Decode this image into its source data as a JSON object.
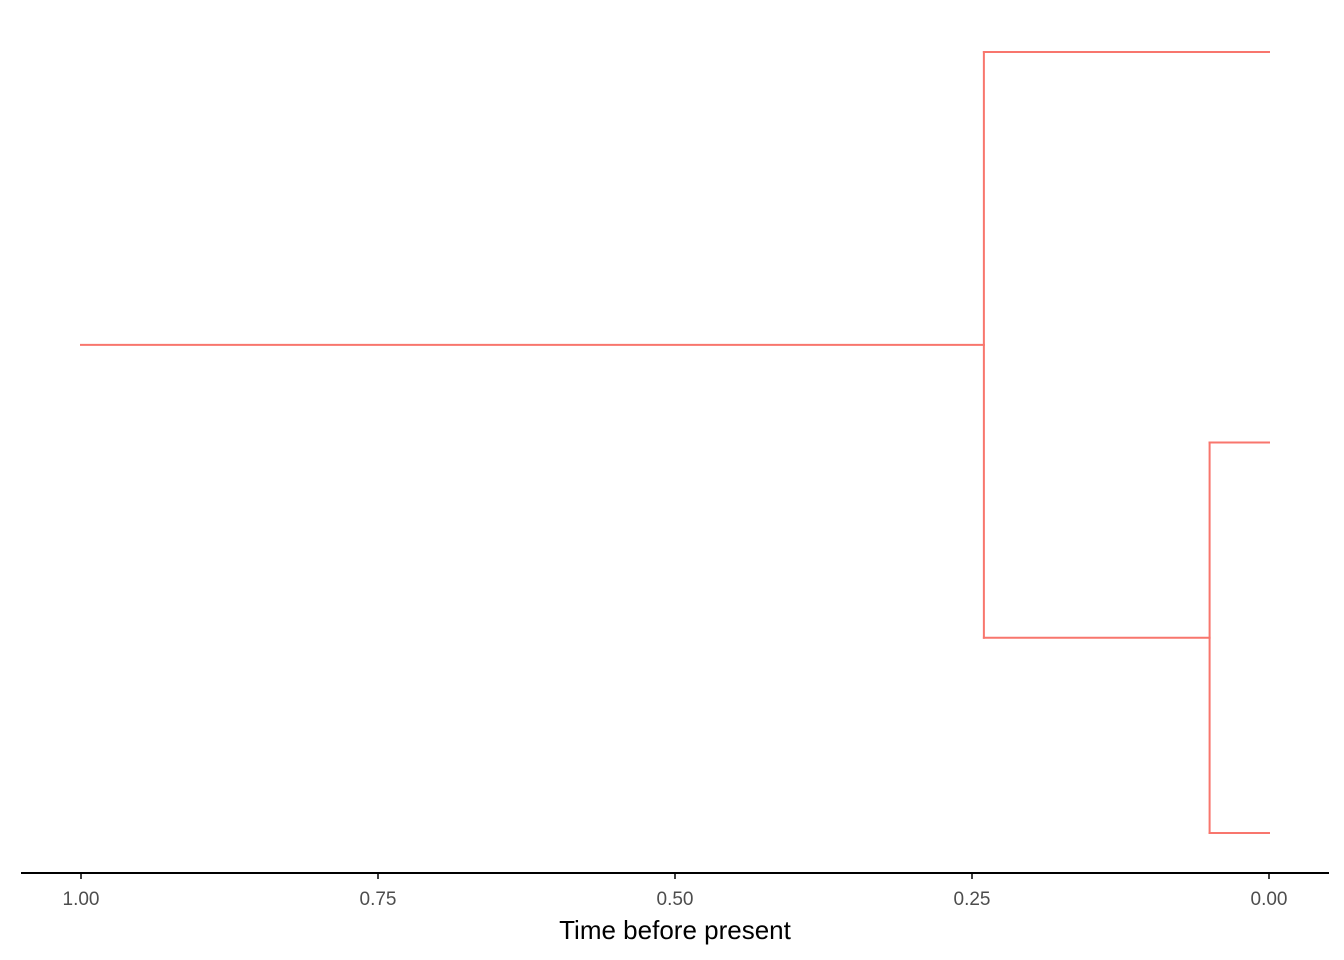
{
  "chart_data": {
    "type": "tree",
    "title": "",
    "xlabel": "Time before present",
    "ylabel": "",
    "x_reversed": true,
    "xlim": [
      1.0,
      0.0
    ],
    "ticks": [
      1.0,
      0.75,
      0.5,
      0.25,
      0.0
    ],
    "tick_labels": [
      "1.00",
      "0.75",
      "0.50",
      "0.25",
      "0.00"
    ],
    "grid": false,
    "legend": false,
    "branch_color": "#F8766D",
    "axis_color": "#000000",
    "tip_order": [
      "tip_1",
      "tip_2",
      "tip_3"
    ],
    "nodes": [
      {
        "id": "root_start",
        "time": 1.0,
        "parent": null
      },
      {
        "id": "root",
        "time": 0.24,
        "parent": "root_start"
      },
      {
        "id": "tip_1",
        "time": 0.0,
        "parent": "root"
      },
      {
        "id": "inner",
        "time": 0.05,
        "parent": "root"
      },
      {
        "id": "tip_2",
        "time": 0.0,
        "parent": "inner"
      },
      {
        "id": "tip_3",
        "time": 0.0,
        "parent": "inner"
      }
    ]
  }
}
